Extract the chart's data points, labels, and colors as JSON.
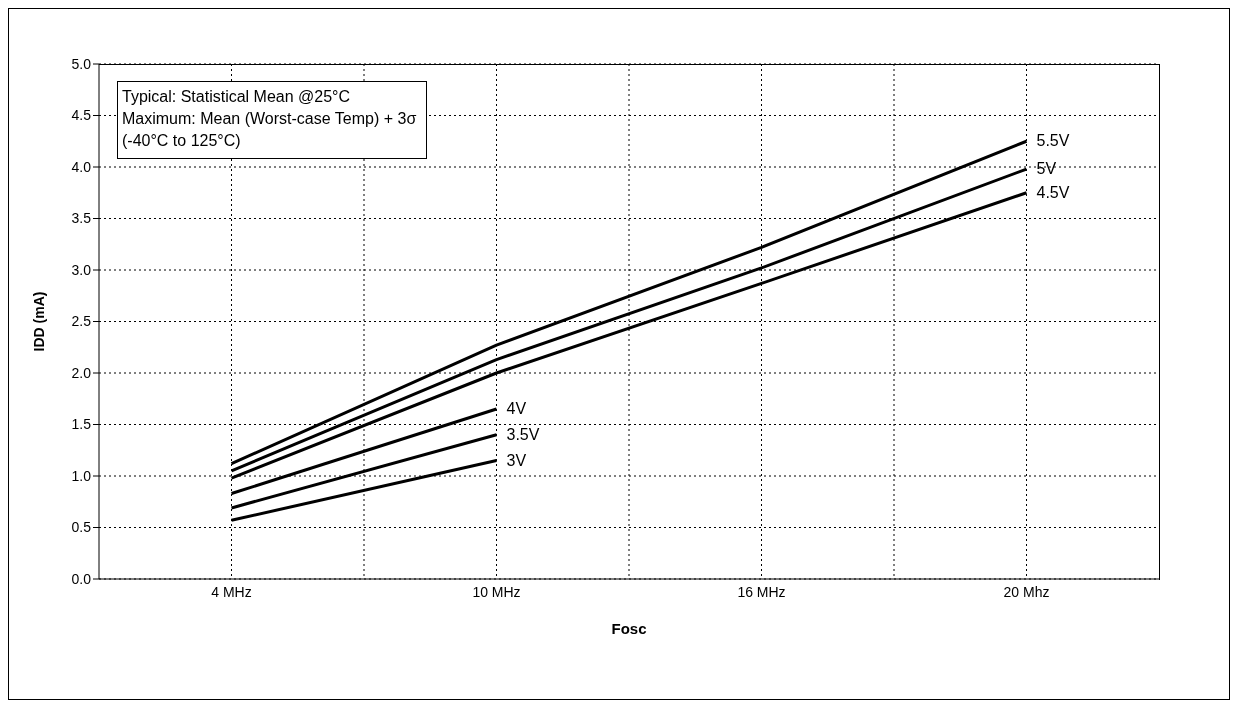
{
  "chart_data": {
    "type": "line",
    "xlabel": "Fosc",
    "ylabel": "IDD (mA)",
    "categories": [
      "4 MHz",
      "10 MHz",
      "16 MHz",
      "20 Mhz"
    ],
    "series": [
      {
        "name": "5.5V",
        "color": "#000000",
        "values": [
          1.12,
          2.27,
          3.22,
          4.25
        ]
      },
      {
        "name": "5V",
        "color": "#000000",
        "values": [
          1.05,
          2.13,
          3.02,
          3.98
        ]
      },
      {
        "name": "4.5V",
        "color": "#000000",
        "values": [
          0.98,
          2.0,
          2.87,
          3.75
        ]
      },
      {
        "name": "4V",
        "color": "#000000",
        "values": [
          0.83,
          1.65,
          null,
          null
        ]
      },
      {
        "name": "3.5V",
        "color": "#000000",
        "values": [
          0.69,
          1.4,
          null,
          null
        ]
      },
      {
        "name": "3V",
        "color": "#000000",
        "values": [
          0.57,
          1.15,
          null,
          null
        ]
      }
    ],
    "ylim": [
      0,
      5
    ],
    "yticks": [
      {
        "value": 0,
        "label": "0.0"
      },
      {
        "value": 0.5,
        "label": "0.5"
      },
      {
        "value": 1,
        "label": "1.0"
      },
      {
        "value": 1.5,
        "label": "1.5"
      },
      {
        "value": 2,
        "label": "2.0"
      },
      {
        "value": 2.5,
        "label": "2.5"
      },
      {
        "value": 3,
        "label": "3.0"
      },
      {
        "value": 3.5,
        "label": "3.5"
      },
      {
        "value": 4,
        "label": "4.0"
      },
      {
        "value": 4.5,
        "label": "4.5"
      },
      {
        "value": 5,
        "label": "5.0"
      }
    ],
    "grid": true,
    "legend": false,
    "marker": "none",
    "line_style": "solid",
    "annotations": [
      "Typical: Statistical Mean @25°C",
      "Maximum: Mean (Worst-case Temp) + 3σ",
      "(-40°C to 125°C)"
    ]
  }
}
